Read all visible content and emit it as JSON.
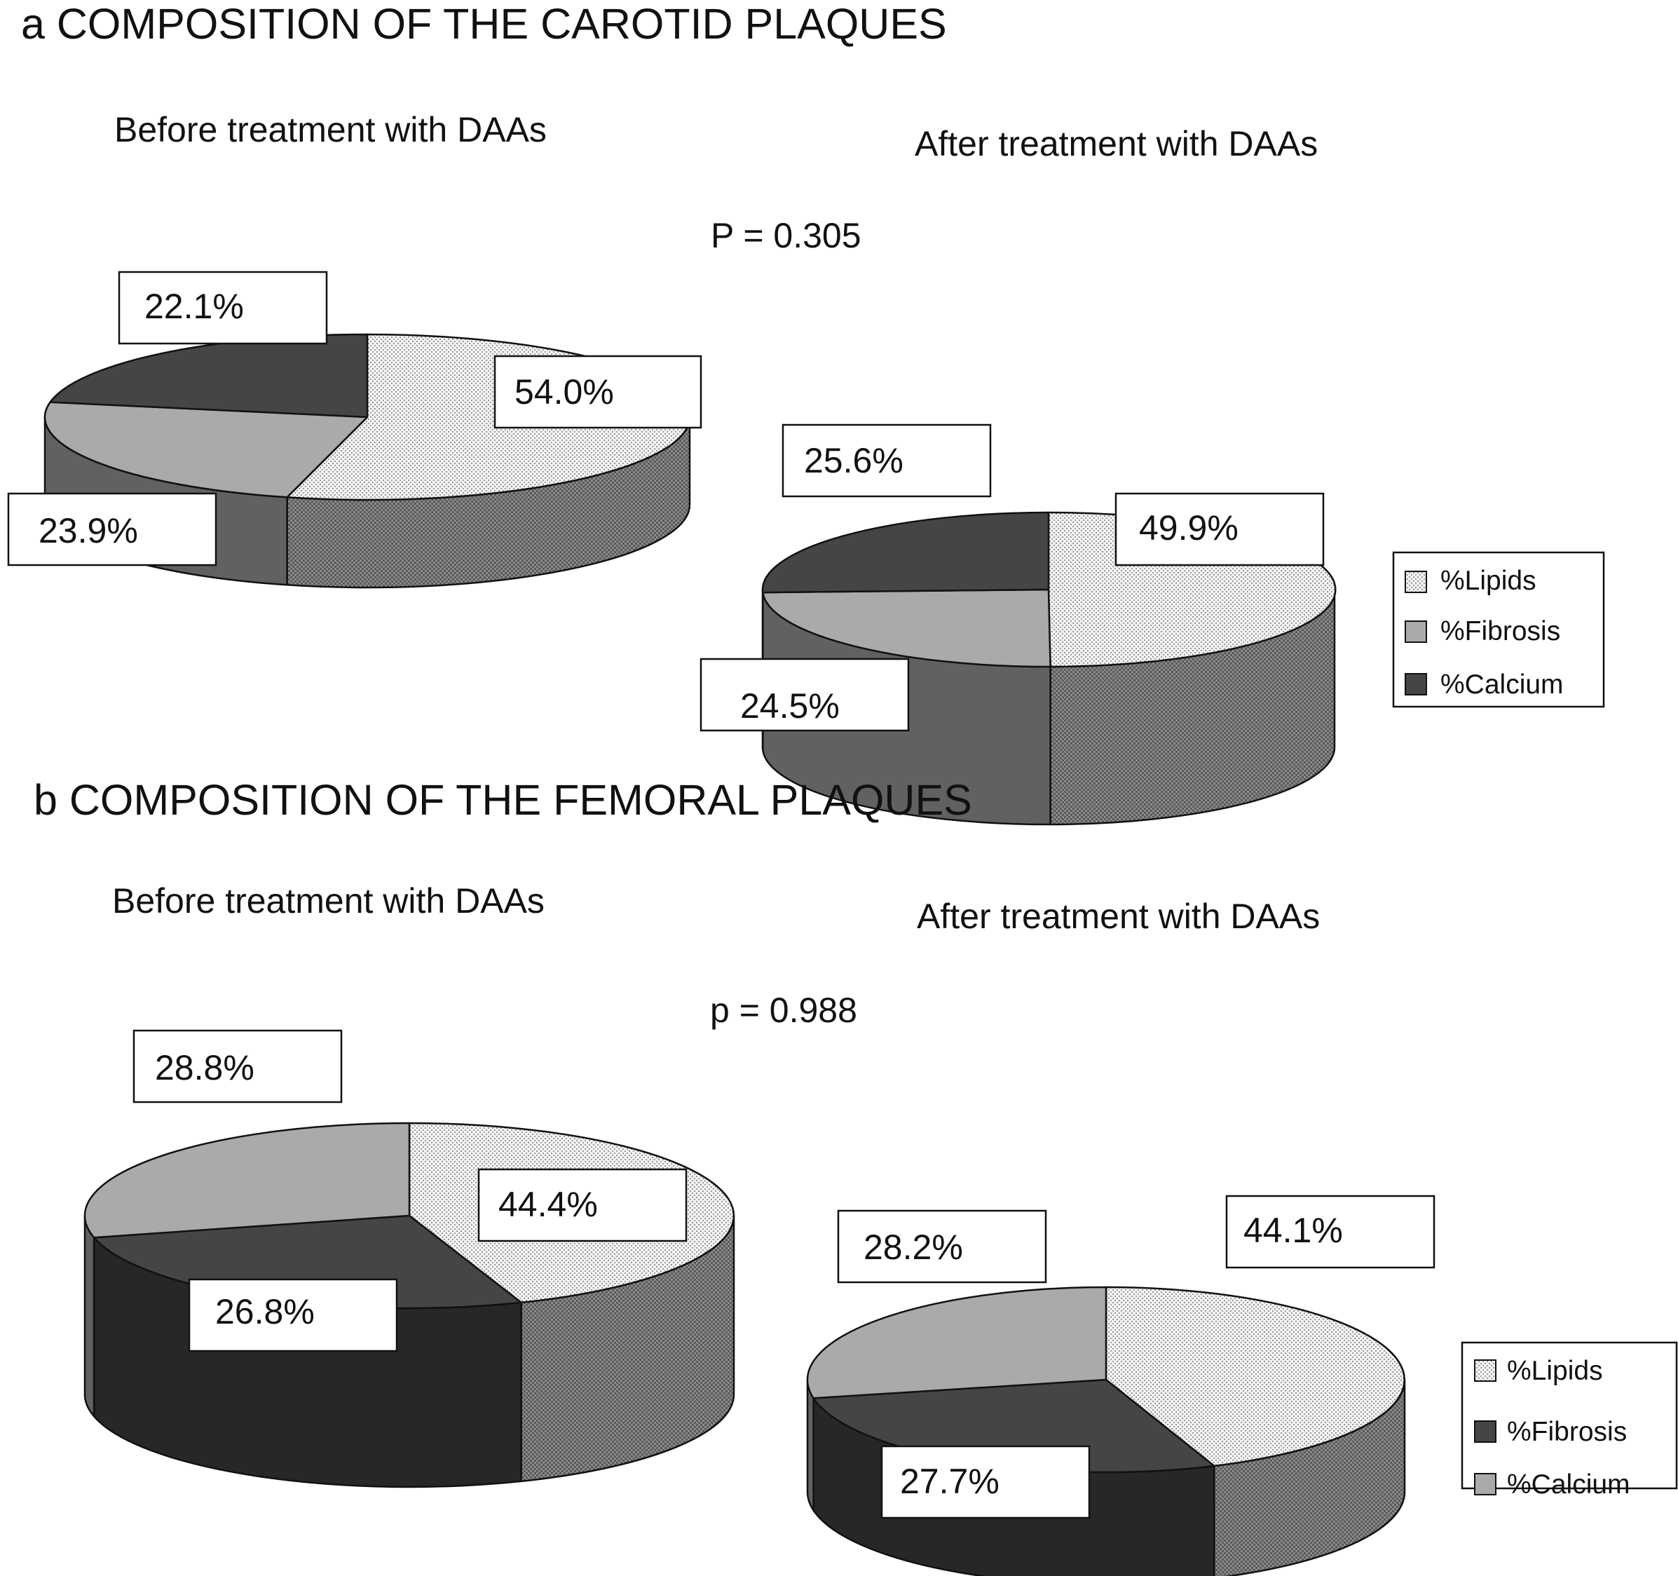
{
  "colors": {
    "lipids_top": "url(#pat-lipids-top)",
    "lipids_side": "url(#pat-lipids-side)",
    "light_gray_top": "#aaaaaa",
    "light_gray_side": "#616161",
    "dark_gray_top": "#454545",
    "dark_gray_side": "#262727"
  },
  "chart_data": [
    {
      "type": "pie",
      "panel": "a",
      "heading": "a COMPOSITION OF THE CAROTID PLAQUES",
      "title": "Before treatment with DAAs",
      "p_value": "P = 0.305",
      "slices": [
        {
          "name": "%Lipids",
          "value": 54.0,
          "label": "54.0%",
          "fill": "lipids"
        },
        {
          "name": "%Fibrosis",
          "value": 23.9,
          "label": "23.9%",
          "fill": "light"
        },
        {
          "name": "%Calcium",
          "value": 22.1,
          "label": "22.1%",
          "fill": "dark"
        }
      ]
    },
    {
      "type": "pie",
      "panel": "a",
      "title": "After treatment with DAAs",
      "slices": [
        {
          "name": "%Lipids",
          "value": 49.9,
          "label": "49.9%",
          "fill": "lipids"
        },
        {
          "name": "%Fibrosis",
          "value": 24.5,
          "label": "24.5%",
          "fill": "light"
        },
        {
          "name": "%Calcium",
          "value": 25.6,
          "label": "25.6%",
          "fill": "dark"
        }
      ],
      "legend": {
        "placement": "right",
        "entries": [
          {
            "name": "%Lipids",
            "fill": "lipids"
          },
          {
            "name": "%Fibrosis",
            "fill": "light"
          },
          {
            "name": "%Calcium",
            "fill": "dark"
          }
        ]
      }
    },
    {
      "type": "pie",
      "panel": "b",
      "heading": "b COMPOSITION OF THE FEMORAL PLAQUES",
      "title": "Before treatment with DAAs",
      "p_value": "p = 0.988",
      "slices": [
        {
          "name": "%Lipids",
          "value": 44.4,
          "label": "44.4%",
          "fill": "lipids"
        },
        {
          "name": "%Fibrosis",
          "value": 26.8,
          "label": "26.8%",
          "fill": "dark"
        },
        {
          "name": "%Calcium",
          "value": 28.8,
          "label": "28.8%",
          "fill": "light"
        }
      ]
    },
    {
      "type": "pie",
      "panel": "b",
      "title": "After treatment with DAAs",
      "slices": [
        {
          "name": "%Lipids",
          "value": 44.1,
          "label": "44.1%",
          "fill": "lipids"
        },
        {
          "name": "%Fibrosis",
          "value": 27.7,
          "label": "27.7%",
          "fill": "dark"
        },
        {
          "name": "%Calcium",
          "value": 28.2,
          "label": "28.2%",
          "fill": "light"
        }
      ],
      "legend": {
        "placement": "right",
        "entries": [
          {
            "name": "%Lipids",
            "fill": "lipids"
          },
          {
            "name": "%Fibrosis",
            "fill": "dark"
          },
          {
            "name": "%Calcium",
            "fill": "light"
          }
        ]
      }
    }
  ]
}
